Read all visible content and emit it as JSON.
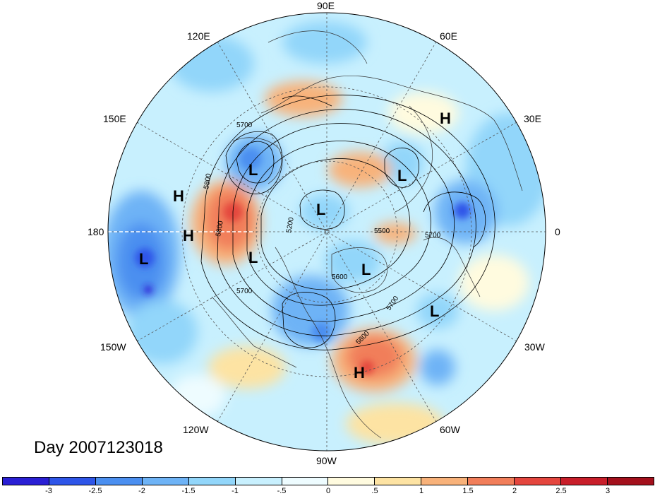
{
  "longitude_labels": {
    "e90": "90E",
    "e120": "120E",
    "e60": "60E",
    "e150": "150E",
    "e30": "30E",
    "w180": "180",
    "zero": "0",
    "w150": "150W",
    "w30": "30W",
    "w120": "120W",
    "w60": "60W",
    "w90": "90W"
  },
  "day_label": "Day 2007123018",
  "pressure_centers": [
    {
      "type": "H",
      "name": "high-center-east-asia"
    },
    {
      "type": "L",
      "name": "low-center-east-siberia"
    },
    {
      "type": "L",
      "name": "low-center-ural"
    },
    {
      "type": "H",
      "name": "high-center-west-pacific"
    },
    {
      "type": "H",
      "name": "high-center-dateline"
    },
    {
      "type": "L",
      "name": "low-center-pole"
    },
    {
      "type": "L",
      "name": "low-center-north-pacific"
    },
    {
      "type": "L",
      "name": "low-center-alaska"
    },
    {
      "type": "L",
      "name": "low-center-greenland"
    },
    {
      "type": "L",
      "name": "low-center-north-atlantic"
    },
    {
      "type": "H",
      "name": "high-center-west-atlantic"
    }
  ],
  "contour_labels": [
    "5700",
    "5800",
    "5800",
    "5200",
    "5500",
    "5700",
    "5600",
    "5700",
    "5700",
    "5800"
  ],
  "colorbar": {
    "colors": [
      "#2a1fd4",
      "#2e55e8",
      "#4b8ff0",
      "#6eb3f6",
      "#92d6fa",
      "#c8f0fe",
      "#eefcff",
      "#fffbdf",
      "#fde3a3",
      "#f8b27a",
      "#f17e5a",
      "#e4463e",
      "#c81e2a",
      "#a3101c"
    ],
    "ticks": [
      "-3",
      "-2.5",
      "-2",
      "-1.5",
      "-1",
      "-.5",
      "0",
      ".5",
      "1",
      "1.5",
      "2",
      "2.5",
      "3"
    ]
  }
}
